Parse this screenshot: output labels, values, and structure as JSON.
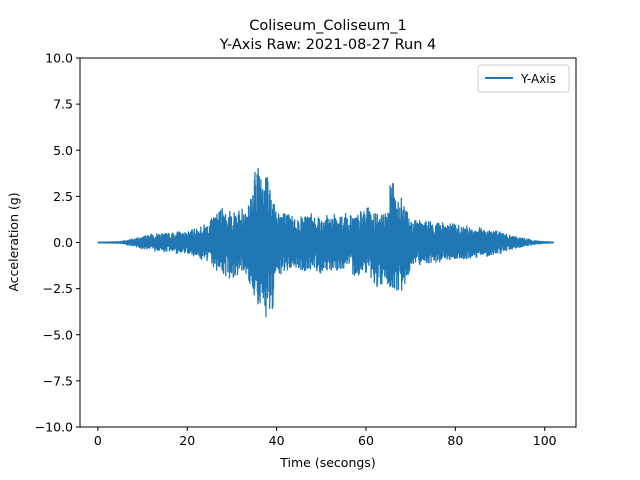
{
  "chart_data": {
    "type": "line",
    "title": "Coliseum_Coliseum_1",
    "subtitle": "Y-Axis Raw: 2021-08-27 Run 4",
    "xlabel": "Time (secongs)",
    "ylabel": "Acceleration (g)",
    "xlim": [
      -4,
      107
    ],
    "ylim": [
      -10,
      10
    ],
    "xticks": [
      0,
      20,
      40,
      60,
      80,
      100
    ],
    "xtick_labels": [
      "0",
      "20",
      "40",
      "60",
      "80",
      "100"
    ],
    "yticks": [
      10,
      7.5,
      5,
      2.5,
      0,
      -2.5,
      -5,
      -7.5,
      -10
    ],
    "ytick_labels": [
      "10.0",
      "7.5",
      "5.0",
      "2.5",
      "0.0",
      "−2.5",
      "−5.0",
      "−7.5",
      "−10.0"
    ],
    "grid": false,
    "legend_position": "top-right",
    "series": [
      {
        "name": "Y-Axis",
        "color": "#1f77b4",
        "x": [
          0,
          5,
          8,
          10,
          12,
          14,
          16,
          18,
          20,
          22,
          24,
          26,
          28,
          30,
          32,
          34,
          35,
          36,
          37,
          38,
          39,
          40,
          42,
          44,
          46,
          48,
          50,
          52,
          54,
          56,
          58,
          60,
          62,
          64,
          65,
          66,
          67,
          68,
          70,
          72,
          74,
          76,
          78,
          80,
          82,
          84,
          86,
          88,
          90,
          92,
          94,
          96,
          98,
          100,
          102
        ],
        "upper": [
          0.02,
          0.05,
          0.2,
          0.35,
          0.45,
          0.5,
          0.5,
          0.6,
          0.55,
          0.8,
          1.0,
          1.4,
          2.0,
          1.7,
          1.8,
          2.5,
          3.8,
          4.8,
          4.8,
          3.8,
          2.8,
          2.0,
          1.6,
          1.4,
          1.5,
          1.7,
          1.4,
          1.5,
          1.6,
          1.6,
          1.5,
          2.0,
          1.6,
          1.5,
          2.6,
          3.8,
          2.6,
          2.8,
          1.2,
          1.2,
          1.2,
          1.1,
          1.1,
          1.0,
          0.9,
          0.9,
          0.8,
          0.7,
          0.6,
          0.4,
          0.3,
          0.2,
          0.1,
          0.05,
          0.02
        ],
        "lower": [
          -0.02,
          -0.05,
          -0.2,
          -0.35,
          -0.45,
          -0.5,
          -0.5,
          -0.6,
          -0.55,
          -0.8,
          -1.0,
          -1.4,
          -1.8,
          -2.0,
          -1.6,
          -2.3,
          -3.0,
          -3.6,
          -4.5,
          -3.9,
          -4.4,
          -2.0,
          -1.6,
          -1.4,
          -1.6,
          -1.5,
          -1.7,
          -1.5,
          -1.5,
          -1.5,
          -1.9,
          -1.6,
          -2.3,
          -2.8,
          -2.4,
          -3.3,
          -2.6,
          -3.1,
          -1.3,
          -1.2,
          -1.1,
          -1.1,
          -1.0,
          -0.9,
          -1.0,
          -0.8,
          -0.8,
          -0.7,
          -0.6,
          -0.4,
          -0.3,
          -0.2,
          -0.1,
          -0.05,
          -0.02
        ]
      }
    ]
  }
}
